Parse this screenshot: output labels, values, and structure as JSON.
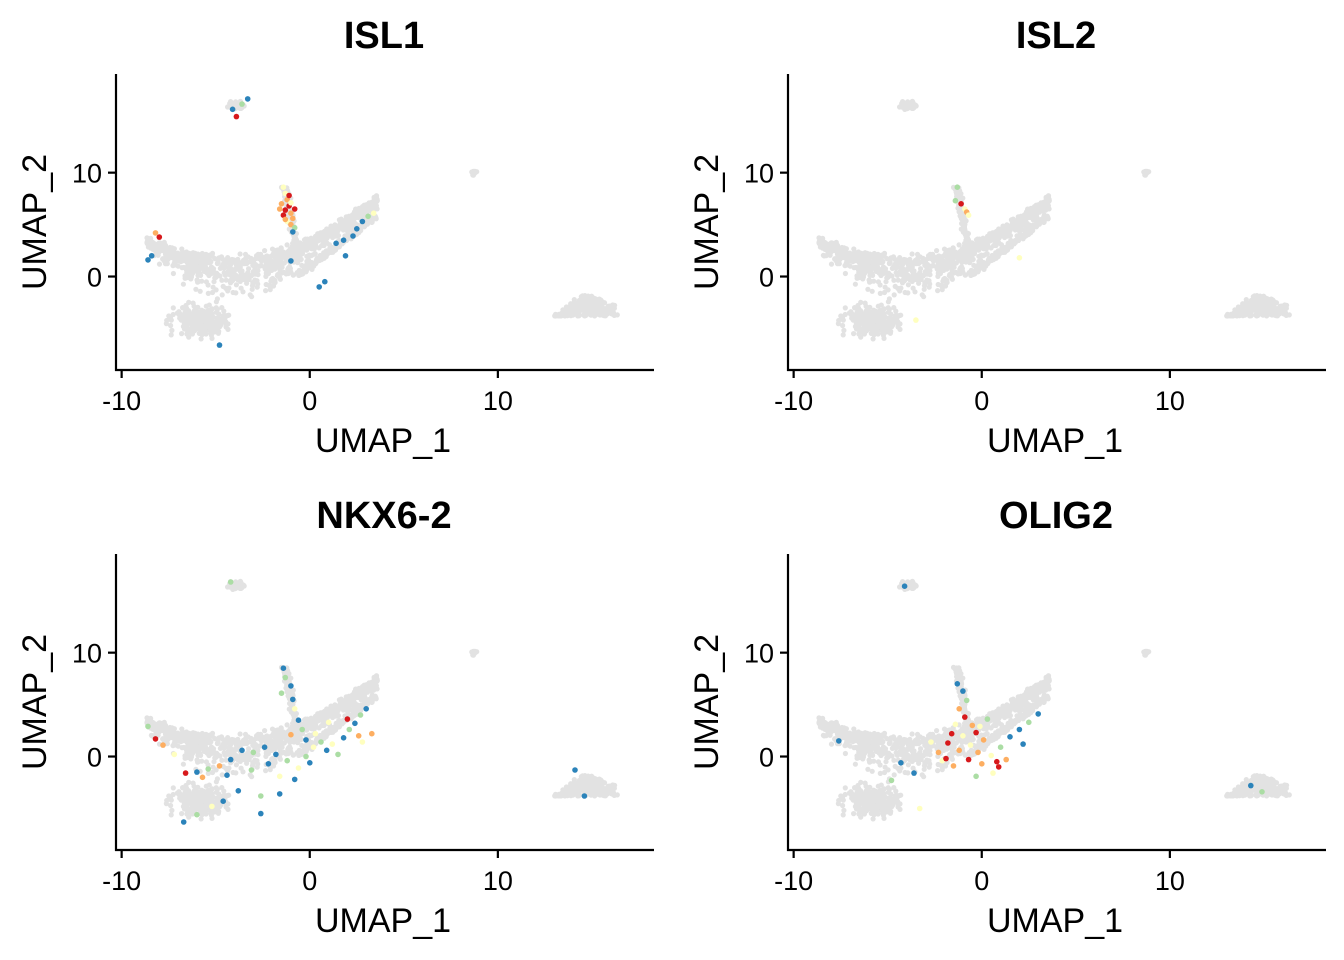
{
  "colors": {
    "background_cells": "#e2e2e2",
    "expression_scale": [
      "#2b83ba",
      "#abdda4",
      "#ffffbf",
      "#fdae61",
      "#d7191c"
    ]
  },
  "chart_data": [
    {
      "type": "scatter",
      "title": "ISL1",
      "xlabel": "UMAP_1",
      "ylabel": "UMAP_2",
      "xlim": [
        -10.3,
        18.3
      ],
      "ylim": [
        -9.0,
        19.5
      ],
      "xticks": [
        -10,
        0,
        10
      ],
      "xtick_labels": [
        "-10",
        "0",
        "10"
      ],
      "yticks": [
        0,
        10
      ],
      "ytick_labels": [
        "0",
        "10"
      ],
      "legend": "none",
      "expressing_cells": [
        {
          "x": -1.4,
          "y": 8.6,
          "level": 3
        },
        {
          "x": -1.3,
          "y": 8.0,
          "level": 3
        },
        {
          "x": -1.2,
          "y": 7.4,
          "level": 4
        },
        {
          "x": -1.5,
          "y": 7.0,
          "level": 4
        },
        {
          "x": -1.1,
          "y": 6.8,
          "level": 5
        },
        {
          "x": -1.3,
          "y": 6.4,
          "level": 5
        },
        {
          "x": -1.0,
          "y": 6.1,
          "level": 4
        },
        {
          "x": -1.4,
          "y": 5.9,
          "level": 5
        },
        {
          "x": -0.9,
          "y": 5.6,
          "level": 4
        },
        {
          "x": -1.2,
          "y": 5.3,
          "level": 3
        },
        {
          "x": -1.0,
          "y": 5.0,
          "level": 4
        },
        {
          "x": -0.8,
          "y": 4.7,
          "level": 2
        },
        {
          "x": -0.9,
          "y": 4.3,
          "level": 1
        },
        {
          "x": -1.1,
          "y": 7.8,
          "level": 5
        },
        {
          "x": -1.6,
          "y": 6.5,
          "level": 4
        },
        {
          "x": -0.8,
          "y": 6.5,
          "level": 5
        },
        {
          "x": -1.3,
          "y": 5.5,
          "level": 4
        },
        {
          "x": -1.0,
          "y": 7.1,
          "level": 3
        },
        {
          "x": -3.3,
          "y": 17.1,
          "level": 1
        },
        {
          "x": -3.6,
          "y": 16.6,
          "level": 2
        },
        {
          "x": -3.9,
          "y": 15.4,
          "level": 5
        },
        {
          "x": -4.1,
          "y": 16.1,
          "level": 1
        },
        {
          "x": 3.4,
          "y": 6.1,
          "level": 3
        },
        {
          "x": 3.1,
          "y": 5.8,
          "level": 2
        },
        {
          "x": 2.8,
          "y": 5.3,
          "level": 1
        },
        {
          "x": 2.5,
          "y": 4.6,
          "level": 1
        },
        {
          "x": 2.3,
          "y": 3.9,
          "level": 1
        },
        {
          "x": 1.8,
          "y": 3.5,
          "level": 1
        },
        {
          "x": 1.4,
          "y": 3.2,
          "level": 1
        },
        {
          "x": 1.9,
          "y": 2.0,
          "level": 1
        },
        {
          "x": 0.8,
          "y": -0.5,
          "level": 1
        },
        {
          "x": 0.5,
          "y": -1.0,
          "level": 1
        },
        {
          "x": -8.0,
          "y": 3.8,
          "level": 5
        },
        {
          "x": -8.2,
          "y": 4.2,
          "level": 4
        },
        {
          "x": -8.4,
          "y": 2.0,
          "level": 1
        },
        {
          "x": -8.6,
          "y": 1.6,
          "level": 1
        },
        {
          "x": -4.8,
          "y": -6.6,
          "level": 1
        },
        {
          "x": -1.0,
          "y": 1.5,
          "level": 1
        }
      ]
    },
    {
      "type": "scatter",
      "title": "ISL2",
      "xlabel": "UMAP_1",
      "ylabel": "UMAP_2",
      "xlim": [
        -10.3,
        18.3
      ],
      "ylim": [
        -9.0,
        19.5
      ],
      "xticks": [
        -10,
        0,
        10
      ],
      "xtick_labels": [
        "-10",
        "0",
        "10"
      ],
      "yticks": [
        0,
        10
      ],
      "ytick_labels": [
        "0",
        "10"
      ],
      "legend": "none",
      "expressing_cells": [
        {
          "x": -1.3,
          "y": 8.6,
          "level": 2
        },
        {
          "x": -1.4,
          "y": 7.3,
          "level": 2
        },
        {
          "x": -1.1,
          "y": 7.0,
          "level": 5
        },
        {
          "x": -0.9,
          "y": 6.5,
          "level": 3
        },
        {
          "x": -0.8,
          "y": 6.2,
          "level": 4
        },
        {
          "x": -0.7,
          "y": 5.9,
          "level": 3
        },
        {
          "x": 2.0,
          "y": 1.8,
          "level": 3
        },
        {
          "x": -3.5,
          "y": -4.2,
          "level": 3
        }
      ]
    },
    {
      "type": "scatter",
      "title": "NKX6-2",
      "xlabel": "UMAP_1",
      "ylabel": "UMAP_2",
      "xlim": [
        -10.3,
        18.3
      ],
      "ylim": [
        -9.0,
        19.5
      ],
      "xticks": [
        -10,
        0,
        10
      ],
      "xtick_labels": [
        "-10",
        "0",
        "10"
      ],
      "yticks": [
        0,
        10
      ],
      "ytick_labels": [
        "0",
        "10"
      ],
      "legend": "none",
      "expressing_cells": [
        {
          "x": -1.4,
          "y": 8.5,
          "level": 1
        },
        {
          "x": -1.3,
          "y": 7.6,
          "level": 2
        },
        {
          "x": -1.0,
          "y": 6.8,
          "level": 1
        },
        {
          "x": -1.5,
          "y": 6.1,
          "level": 2
        },
        {
          "x": -0.9,
          "y": 5.5,
          "level": 1
        },
        {
          "x": -0.8,
          "y": 4.6,
          "level": 3
        },
        {
          "x": -0.6,
          "y": 3.5,
          "level": 1
        },
        {
          "x": -0.4,
          "y": 2.6,
          "level": 2
        },
        {
          "x": -1.0,
          "y": 2.1,
          "level": 4
        },
        {
          "x": -0.2,
          "y": 1.6,
          "level": 1
        },
        {
          "x": 0.3,
          "y": 2.2,
          "level": 3
        },
        {
          "x": 0.6,
          "y": 1.4,
          "level": 2
        },
        {
          "x": 0.9,
          "y": 0.6,
          "level": 1
        },
        {
          "x": 1.2,
          "y": 1.2,
          "level": 3
        },
        {
          "x": 1.5,
          "y": 0.2,
          "level": 2
        },
        {
          "x": 1.8,
          "y": 1.8,
          "level": 1
        },
        {
          "x": 2.1,
          "y": 2.6,
          "level": 2
        },
        {
          "x": 2.4,
          "y": 3.2,
          "level": 1
        },
        {
          "x": 2.7,
          "y": 4.0,
          "level": 2
        },
        {
          "x": 3.0,
          "y": 4.6,
          "level": 1
        },
        {
          "x": 3.3,
          "y": 2.2,
          "level": 4
        },
        {
          "x": 2.6,
          "y": 2.0,
          "level": 4
        },
        {
          "x": 2.0,
          "y": 3.6,
          "level": 5
        },
        {
          "x": 0.0,
          "y": -0.6,
          "level": 1
        },
        {
          "x": -0.6,
          "y": -1.1,
          "level": 3
        },
        {
          "x": -1.2,
          "y": -0.4,
          "level": 2
        },
        {
          "x": -1.8,
          "y": 0.2,
          "level": 1
        },
        {
          "x": -2.4,
          "y": 0.9,
          "level": 1
        },
        {
          "x": -3.0,
          "y": 0.4,
          "level": 2
        },
        {
          "x": -3.6,
          "y": 0.6,
          "level": 1
        },
        {
          "x": -4.2,
          "y": -0.3,
          "level": 1
        },
        {
          "x": -4.8,
          "y": -0.9,
          "level": 4
        },
        {
          "x": -5.4,
          "y": -1.2,
          "level": 2
        },
        {
          "x": -6.0,
          "y": -1.5,
          "level": 1
        },
        {
          "x": -6.6,
          "y": -1.6,
          "level": 5
        },
        {
          "x": -5.7,
          "y": -2.0,
          "level": 4
        },
        {
          "x": -4.4,
          "y": -1.8,
          "level": 1
        },
        {
          "x": -3.1,
          "y": -1.3,
          "level": 2
        },
        {
          "x": -2.2,
          "y": -0.7,
          "level": 1
        },
        {
          "x": -1.6,
          "y": -1.9,
          "level": 3
        },
        {
          "x": -0.8,
          "y": -2.2,
          "level": 1
        },
        {
          "x": -3.8,
          "y": -3.3,
          "level": 1
        },
        {
          "x": -2.6,
          "y": -3.8,
          "level": 2
        },
        {
          "x": -1.6,
          "y": -3.6,
          "level": 1
        },
        {
          "x": -4.6,
          "y": -4.3,
          "level": 1
        },
        {
          "x": -5.2,
          "y": -4.8,
          "level": 3
        },
        {
          "x": -2.6,
          "y": -5.5,
          "level": 1
        },
        {
          "x": -6.0,
          "y": -5.6,
          "level": 2
        },
        {
          "x": -6.7,
          "y": -6.3,
          "level": 1
        },
        {
          "x": -8.2,
          "y": 1.7,
          "level": 5
        },
        {
          "x": -7.8,
          "y": 1.1,
          "level": 4
        },
        {
          "x": -8.6,
          "y": 2.9,
          "level": 2
        },
        {
          "x": -7.2,
          "y": 0.2,
          "level": 3
        },
        {
          "x": -4.2,
          "y": 16.8,
          "level": 2
        },
        {
          "x": 14.1,
          "y": -1.3,
          "level": 1
        },
        {
          "x": 14.6,
          "y": -3.8,
          "level": 1
        },
        {
          "x": 0.2,
          "y": 0.9,
          "level": 3
        },
        {
          "x": 1.0,
          "y": 3.3,
          "level": 3
        },
        {
          "x": -0.2,
          "y": 0.0,
          "level": 2
        },
        {
          "x": 2.8,
          "y": 1.4,
          "level": 3
        }
      ]
    },
    {
      "type": "scatter",
      "title": "OLIG2",
      "xlabel": "UMAP_1",
      "ylabel": "UMAP_2",
      "xlim": [
        -10.3,
        18.3
      ],
      "ylim": [
        -9.0,
        19.5
      ],
      "xticks": [
        -10,
        0,
        10
      ],
      "xtick_labels": [
        "-10",
        "0",
        "10"
      ],
      "yticks": [
        0,
        10
      ],
      "ytick_labels": [
        "0",
        "10"
      ],
      "legend": "none",
      "expressing_cells": [
        {
          "x": -1.3,
          "y": 7.0,
          "level": 1
        },
        {
          "x": -1.0,
          "y": 6.3,
          "level": 1
        },
        {
          "x": -0.8,
          "y": 5.4,
          "level": 2
        },
        {
          "x": -1.2,
          "y": 4.6,
          "level": 4
        },
        {
          "x": -0.9,
          "y": 3.8,
          "level": 5
        },
        {
          "x": -0.5,
          "y": 3.0,
          "level": 4
        },
        {
          "x": -1.4,
          "y": 3.1,
          "level": 3
        },
        {
          "x": -0.3,
          "y": 2.3,
          "level": 5
        },
        {
          "x": 0.1,
          "y": 1.6,
          "level": 4
        },
        {
          "x": -0.6,
          "y": 1.1,
          "level": 3
        },
        {
          "x": -1.2,
          "y": 0.6,
          "level": 4
        },
        {
          "x": -1.8,
          "y": 1.3,
          "level": 5
        },
        {
          "x": -2.3,
          "y": 0.4,
          "level": 4
        },
        {
          "x": -2.7,
          "y": 1.4,
          "level": 3
        },
        {
          "x": -2.1,
          "y": -0.4,
          "level": 3
        },
        {
          "x": -1.5,
          "y": -0.9,
          "level": 4
        },
        {
          "x": -0.7,
          "y": -0.3,
          "level": 5
        },
        {
          "x": 0.0,
          "y": -0.7,
          "level": 4
        },
        {
          "x": 0.5,
          "y": 0.1,
          "level": 3
        },
        {
          "x": 0.9,
          "y": -1.0,
          "level": 5
        },
        {
          "x": 1.3,
          "y": -0.3,
          "level": 4
        },
        {
          "x": 0.6,
          "y": -1.6,
          "level": 3
        },
        {
          "x": -0.3,
          "y": -1.9,
          "level": 2
        },
        {
          "x": 1.0,
          "y": 0.9,
          "level": 2
        },
        {
          "x": 1.5,
          "y": 1.9,
          "level": 1
        },
        {
          "x": 2.0,
          "y": 2.6,
          "level": 1
        },
        {
          "x": 2.5,
          "y": 3.3,
          "level": 2
        },
        {
          "x": 3.0,
          "y": 4.1,
          "level": 1
        },
        {
          "x": 2.2,
          "y": 1.2,
          "level": 1
        },
        {
          "x": -0.1,
          "y": 2.9,
          "level": 3
        },
        {
          "x": -1.6,
          "y": 2.2,
          "level": 5
        },
        {
          "x": -1.0,
          "y": 2.0,
          "level": 3
        },
        {
          "x": 0.3,
          "y": 3.6,
          "level": 2
        },
        {
          "x": -4.3,
          "y": -0.6,
          "level": 1
        },
        {
          "x": -3.6,
          "y": -1.6,
          "level": 1
        },
        {
          "x": -4.8,
          "y": -2.3,
          "level": 2
        },
        {
          "x": -3.3,
          "y": -5.0,
          "level": 3
        },
        {
          "x": -7.6,
          "y": 1.5,
          "level": 1
        },
        {
          "x": -4.1,
          "y": 16.4,
          "level": 1
        },
        {
          "x": 14.3,
          "y": -2.8,
          "level": 1
        },
        {
          "x": 14.9,
          "y": -3.4,
          "level": 2
        },
        {
          "x": -1.9,
          "y": -0.2,
          "level": 5
        },
        {
          "x": -0.2,
          "y": 0.4,
          "level": 4
        },
        {
          "x": 0.8,
          "y": -0.5,
          "level": 5
        }
      ]
    }
  ]
}
